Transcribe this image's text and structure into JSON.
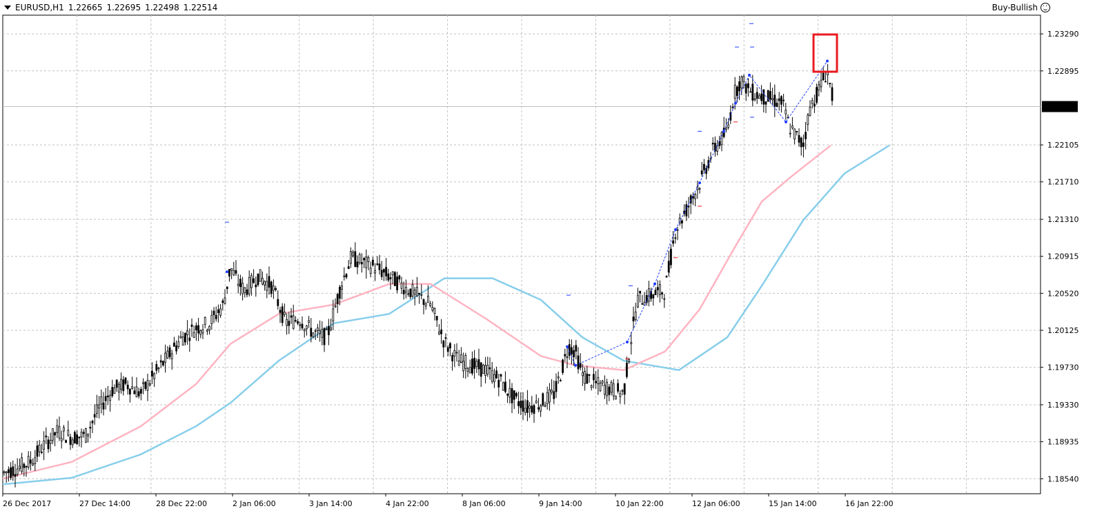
{
  "header": {
    "symbol": "EURUSD,H1",
    "open": "1.22665",
    "high": "1.22695",
    "low": "1.22498",
    "close": "1.22514"
  },
  "signal": {
    "label": "Buy-Bullish",
    "icon": "smiley-icon"
  },
  "colors": {
    "ma_fast": "#ffb3c1",
    "ma_slow": "#87ceeb",
    "candles": "#000000",
    "grid": "#c0c0c0",
    "highlight_box": "#e8191f",
    "zigzag": "#1e3cff",
    "price_tag_bg": "#000000"
  },
  "chart_data": {
    "type": "candlestick",
    "symbol": "EURUSD",
    "timeframe": "H1",
    "current_price": "1.22514",
    "ylim": [
      1.1838,
      1.2349
    ],
    "y_ticks": [
      "1.23290",
      "1.22895",
      "1.22105",
      "1.21710",
      "1.21310",
      "1.20915",
      "1.20520",
      "1.20125",
      "1.19730",
      "1.19330",
      "1.18935",
      "1.18540"
    ],
    "x_ticks": [
      "26 Dec 2017",
      "27 Dec 14:00",
      "28 Dec 22:00",
      "2 Jan 06:00",
      "3 Jan 14:00",
      "4 Jan 22:00",
      "8 Jan 06:00",
      "9 Jan 14:00",
      "10 Jan 22:00",
      "12 Jan 06:00",
      "15 Jan 14:00",
      "16 Jan 22:00"
    ],
    "close_path": [
      [
        0,
        1.186
      ],
      [
        20,
        1.1865
      ],
      [
        40,
        1.1872
      ],
      [
        60,
        1.189
      ],
      [
        80,
        1.1905
      ],
      [
        100,
        1.1898
      ],
      [
        120,
        1.19
      ],
      [
        140,
        1.193
      ],
      [
        160,
        1.195
      ],
      [
        180,
        1.1955
      ],
      [
        200,
        1.1945
      ],
      [
        220,
        1.1965
      ],
      [
        240,
        1.1985
      ],
      [
        260,
        1.2005
      ],
      [
        280,
        1.2015
      ],
      [
        300,
        1.202
      ],
      [
        320,
        1.204
      ],
      [
        330,
        1.208
      ],
      [
        340,
        1.2065
      ],
      [
        350,
        1.2055
      ],
      [
        370,
        1.207
      ],
      [
        390,
        1.206
      ],
      [
        410,
        1.202
      ],
      [
        430,
        1.2025
      ],
      [
        450,
        1.201
      ],
      [
        470,
        1.2005
      ],
      [
        490,
        1.206
      ],
      [
        505,
        1.209
      ],
      [
        520,
        1.2085
      ],
      [
        540,
        1.208
      ],
      [
        560,
        1.207
      ],
      [
        580,
        1.206
      ],
      [
        600,
        1.205
      ],
      [
        620,
        1.204
      ],
      [
        640,
        1.2
      ],
      [
        660,
        1.198
      ],
      [
        680,
        1.1975
      ],
      [
        700,
        1.197
      ],
      [
        720,
        1.196
      ],
      [
        740,
        1.194
      ],
      [
        760,
        1.193
      ],
      [
        780,
        1.1935
      ],
      [
        800,
        1.1945
      ],
      [
        820,
        1.1995
      ],
      [
        830,
        1.199
      ],
      [
        840,
        1.1965
      ],
      [
        860,
        1.1955
      ],
      [
        880,
        1.195
      ],
      [
        900,
        1.1945
      ],
      [
        910,
        1.2
      ],
      [
        920,
        1.2045
      ],
      [
        940,
        1.205
      ],
      [
        960,
        1.2055
      ],
      [
        975,
        1.212
      ],
      [
        990,
        1.214
      ],
      [
        1010,
        1.217
      ],
      [
        1030,
        1.2205
      ],
      [
        1050,
        1.2225
      ],
      [
        1060,
        1.2265
      ],
      [
        1070,
        1.228
      ],
      [
        1080,
        1.227
      ],
      [
        1090,
        1.2265
      ],
      [
        1110,
        1.226
      ],
      [
        1130,
        1.2255
      ],
      [
        1140,
        1.223
      ],
      [
        1160,
        1.221
      ],
      [
        1170,
        1.225
      ],
      [
        1180,
        1.2265
      ],
      [
        1195,
        1.229
      ],
      [
        1205,
        1.2251
      ]
    ],
    "ma_fast": [
      [
        0,
        1.1854
      ],
      [
        100,
        1.1872
      ],
      [
        200,
        1.191
      ],
      [
        280,
        1.1955
      ],
      [
        330,
        1.1998
      ],
      [
        400,
        1.203
      ],
      [
        480,
        1.204
      ],
      [
        560,
        1.2062
      ],
      [
        620,
        1.2062
      ],
      [
        700,
        1.2025
      ],
      [
        780,
        1.1985
      ],
      [
        830,
        1.1975
      ],
      [
        900,
        1.197
      ],
      [
        960,
        1.199
      ],
      [
        1010,
        1.2035
      ],
      [
        1060,
        1.21
      ],
      [
        1100,
        1.215
      ],
      [
        1140,
        1.2175
      ],
      [
        1200,
        1.221
      ]
    ],
    "ma_slow": [
      [
        0,
        1.1848
      ],
      [
        100,
        1.1855
      ],
      [
        200,
        1.188
      ],
      [
        280,
        1.191
      ],
      [
        330,
        1.1935
      ],
      [
        400,
        1.198
      ],
      [
        480,
        1.202
      ],
      [
        560,
        1.203
      ],
      [
        640,
        1.2068
      ],
      [
        710,
        1.2068
      ],
      [
        780,
        1.2045
      ],
      [
        840,
        1.2005
      ],
      [
        900,
        1.198
      ],
      [
        980,
        1.197
      ],
      [
        1050,
        1.2005
      ],
      [
        1100,
        1.206
      ],
      [
        1160,
        1.213
      ],
      [
        1220,
        1.218
      ],
      [
        1285,
        1.221
      ]
    ]
  }
}
